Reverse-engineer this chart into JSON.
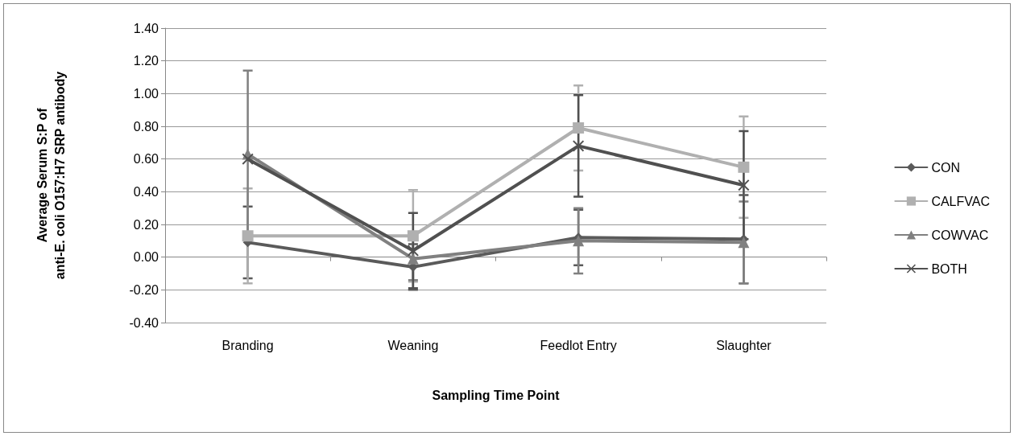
{
  "chart_data": {
    "type": "line",
    "xlabel": "Sampling Time Point",
    "ylabel": "Average Serum S:P of\nanti-E. coli O157:H7 SRP antibody",
    "categories": [
      "Branding",
      "Weaning",
      "Feedlot Entry",
      "Slaughter"
    ],
    "ylim": [
      -0.4,
      1.4
    ],
    "yticks": [
      {
        "value": -0.4,
        "label": "-0.40"
      },
      {
        "value": -0.2,
        "label": "-0.20"
      },
      {
        "value": 0,
        "label": "0.00"
      },
      {
        "value": 0.2,
        "label": "0.20"
      },
      {
        "value": 0.4,
        "label": "0.40"
      },
      {
        "value": 0.6,
        "label": "0.60"
      },
      {
        "value": 0.8,
        "label": "0.80"
      },
      {
        "value": 1.0,
        "label": "1.00"
      },
      {
        "value": 1.2,
        "label": "1.20"
      },
      {
        "value": 1.4,
        "label": "1.40"
      }
    ],
    "grid": "y",
    "legend": "right",
    "line_style": "solid",
    "series": [
      {
        "name": "CON",
        "color": "#5a5a5a",
        "marker": "diamond",
        "values": [
          0.09,
          -0.06,
          0.12,
          0.11
        ],
        "errors": [
          0.22,
          0.14,
          0.17,
          0.27
        ]
      },
      {
        "name": "CALFVAC",
        "color": "#b0b0b0",
        "marker": "square",
        "values": [
          0.13,
          0.13,
          0.79,
          0.55
        ],
        "errors": [
          0.29,
          0.28,
          0.26,
          0.31
        ]
      },
      {
        "name": "COWVAC",
        "color": "#808080",
        "marker": "triangle",
        "values": [
          0.63,
          -0.01,
          0.1,
          0.09
        ],
        "errors": [
          0.51,
          0.13,
          0.2,
          0.25
        ]
      },
      {
        "name": "BOTH",
        "color": "#505050",
        "marker": "cross",
        "values": [
          0.6,
          0.04,
          0.68,
          0.44
        ],
        "errors": [
          null,
          0.23,
          0.31,
          0.33
        ]
      }
    ]
  }
}
